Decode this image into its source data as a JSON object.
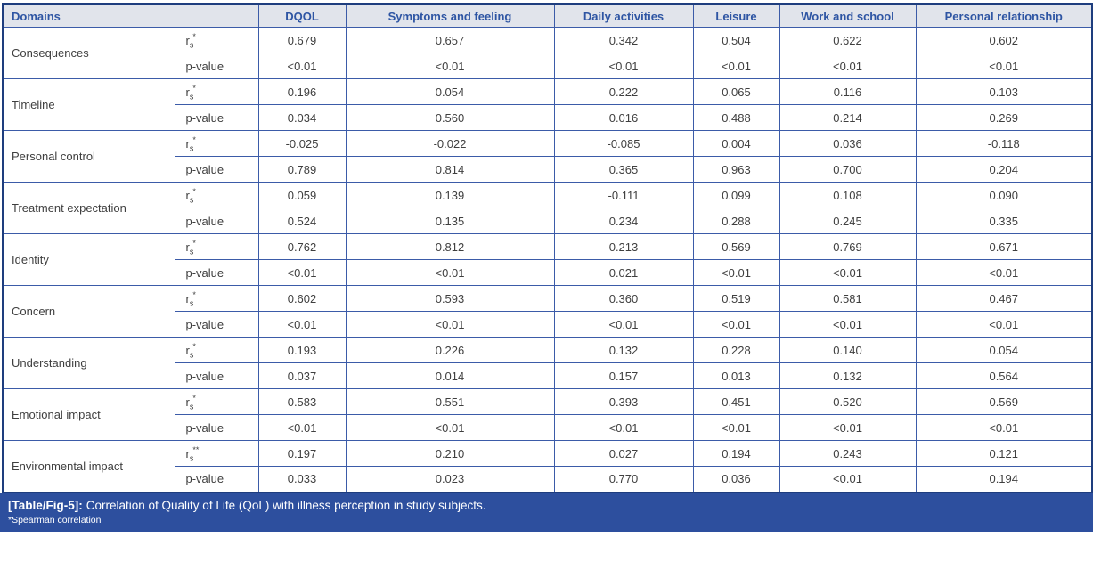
{
  "colors": {
    "headerBg": "#e1e4eb",
    "headerText": "#2e55a3",
    "borderColor": "#3b5ba8",
    "outerBorder": "#1e3d7e",
    "bodyText": "#3f3f3f",
    "footerBg": "#2d4f9e",
    "footerText": "#ffffff"
  },
  "table": {
    "header": [
      "Domains",
      "DQOL",
      "Symptoms and feeling",
      "Daily activities",
      "Leisure",
      "Work and school",
      "Personal relationship"
    ],
    "stat_label": {
      "base": "r",
      "sub": "s"
    },
    "p_label": "p-value",
    "rows": [
      {
        "domain": "Consequences",
        "sup": "*",
        "rs": [
          "0.679",
          "0.657",
          "0.342",
          "0.504",
          "0.622",
          "0.602"
        ],
        "p": [
          "<0.01",
          "<0.01",
          "<0.01",
          "<0.01",
          "<0.01",
          "<0.01"
        ]
      },
      {
        "domain": "Timeline",
        "sup": "*",
        "rs": [
          "0.196",
          "0.054",
          "0.222",
          "0.065",
          "0.116",
          "0.103"
        ],
        "p": [
          "0.034",
          "0.560",
          "0.016",
          "0.488",
          "0.214",
          "0.269"
        ]
      },
      {
        "domain": "Personal control",
        "sup": "*",
        "rs": [
          "-0.025",
          "-0.022",
          "-0.085",
          "0.004",
          "0.036",
          "-0.118"
        ],
        "p": [
          "0.789",
          "0.814",
          "0.365",
          "0.963",
          "0.700",
          "0.204"
        ]
      },
      {
        "domain": "Treatment expectation",
        "sup": "*",
        "rs": [
          "0.059",
          "0.139",
          "-0.111",
          "0.099",
          "0.108",
          "0.090"
        ],
        "p": [
          "0.524",
          "0.135",
          "0.234",
          "0.288",
          "0.245",
          "0.335"
        ]
      },
      {
        "domain": "Identity",
        "sup": "*",
        "rs": [
          "0.762",
          "0.812",
          "0.213",
          "0.569",
          "0.769",
          "0.671"
        ],
        "p": [
          "<0.01",
          "<0.01",
          "0.021",
          "<0.01",
          "<0.01",
          "<0.01"
        ]
      },
      {
        "domain": "Concern",
        "sup": "*",
        "rs": [
          "0.602",
          "0.593",
          "0.360",
          "0.519",
          "0.581",
          "0.467"
        ],
        "p": [
          "<0.01",
          "<0.01",
          "<0.01",
          "<0.01",
          "<0.01",
          "<0.01"
        ]
      },
      {
        "domain": "Understanding",
        "sup": "*",
        "rs": [
          "0.193",
          "0.226",
          "0.132",
          "0.228",
          "0.140",
          "0.054"
        ],
        "p": [
          "0.037",
          "0.014",
          "0.157",
          "0.013",
          "0.132",
          "0.564"
        ]
      },
      {
        "domain": "Emotional impact",
        "sup": "*",
        "rs": [
          "0.583",
          "0.551",
          "0.393",
          "0.451",
          "0.520",
          "0.569"
        ],
        "p": [
          "<0.01",
          "<0.01",
          "<0.01",
          "<0.01",
          "<0.01",
          "<0.01"
        ]
      },
      {
        "domain": "Environmental impact",
        "sup": "**",
        "rs": [
          "0.197",
          "0.210",
          "0.027",
          "0.194",
          "0.243",
          "0.121"
        ],
        "p": [
          "0.033",
          "0.023",
          "0.770",
          "0.036",
          "<0.01",
          "0.194"
        ]
      }
    ]
  },
  "footer": {
    "label": "[Table/Fig-5]:",
    "caption": "Correlation of Quality of Life (QoL) with illness perception in study subjects.",
    "note": "*Spearman correlation"
  }
}
